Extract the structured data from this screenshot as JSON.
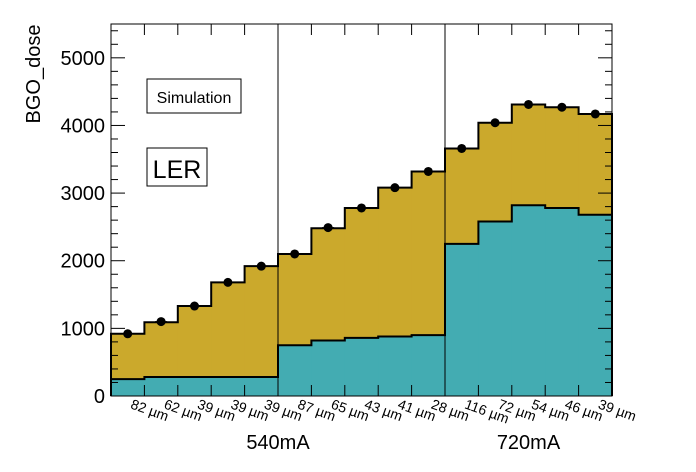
{
  "chart_data": {
    "type": "bar",
    "ylabel": "BGO_dose",
    "ylim": [
      0,
      5500
    ],
    "y_ticks": [
      0,
      1000,
      2000,
      3000,
      4000,
      5000
    ],
    "categories": [
      "82 µm",
      "62 µm",
      "39 µm",
      "39 µm",
      "39 µm",
      "87 µm",
      "65 µm",
      "43 µm",
      "41 µm",
      "28 µm",
      "116 µm",
      "72 µm",
      "54 µm",
      "46 µm",
      "39 µm"
    ],
    "series": [
      {
        "values": [
          250,
          280,
          280,
          280,
          280,
          750,
          820,
          860,
          880,
          900,
          2250,
          2580,
          2820,
          2780,
          2680
        ]
      },
      {
        "values": [
          920,
          1090,
          1330,
          1680,
          1920,
          2100,
          2480,
          2780,
          3080,
          3320,
          3660,
          4040,
          4310,
          4270,
          4170
        ]
      }
    ],
    "points": [
      920,
      1100,
      1330,
      1680,
      1920,
      2100,
      2490,
      2780,
      3080,
      3320,
      3660,
      4040,
      4310,
      4270,
      4170
    ],
    "groups": [
      {
        "label": "540mA",
        "from": 0,
        "to": 9
      },
      {
        "label": "720mA",
        "from": 10,
        "to": 14
      }
    ],
    "group_separators": [
      5,
      10
    ],
    "annotations": {
      "simulation": "Simulation",
      "ring": "LER"
    },
    "colors": {
      "fill_top": "#cba92c",
      "fill_bottom": "#43acb2",
      "ring_text": "#d42a2a"
    }
  }
}
